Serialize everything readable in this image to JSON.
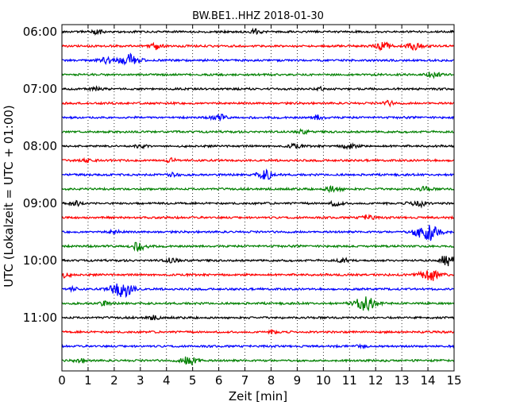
{
  "chart_data": {
    "type": "line",
    "title": "BW.BE1..HHZ 2018-01-30",
    "xlabel": "Zeit  [min]",
    "ylabel": "UTC (Lokalzeit = UTC + 01:00)",
    "xlim": [
      0,
      15
    ],
    "x_ticks": [
      "0",
      "1",
      "2",
      "3",
      "4",
      "5",
      "6",
      "7",
      "8",
      "9",
      "10",
      "11",
      "12",
      "13",
      "14",
      "15"
    ],
    "y_tick_labels": [
      "06:00",
      "07:00",
      "08:00",
      "09:00",
      "10:00",
      "11:00"
    ],
    "vertical_grid": "dotted, at every minute",
    "trace_colors": [
      "#000000",
      "#ff0000",
      "#0000ff",
      "#008000"
    ],
    "series": [
      {
        "start": "06:00",
        "events": [
          {
            "x": 1.3,
            "amp": 0.35
          },
          {
            "x": 7.4,
            "amp": 0.3
          }
        ]
      },
      {
        "start": "06:15",
        "events": [
          {
            "x": 3.6,
            "amp": 0.45
          },
          {
            "x": 12.3,
            "amp": 0.55
          },
          {
            "x": 13.5,
            "amp": 0.5
          }
        ]
      },
      {
        "start": "06:30",
        "events": [
          {
            "x": 1.7,
            "amp": 0.5
          },
          {
            "x": 2.6,
            "amp": 0.9
          }
        ]
      },
      {
        "start": "06:45",
        "events": [
          {
            "x": 14.2,
            "amp": 0.4
          }
        ]
      },
      {
        "start": "07:00",
        "events": [
          {
            "x": 1.3,
            "amp": 0.25
          },
          {
            "x": 10.0,
            "amp": 0.25
          }
        ]
      },
      {
        "start": "07:15",
        "events": [
          {
            "x": 12.5,
            "amp": 0.3
          }
        ]
      },
      {
        "start": "07:30",
        "events": [
          {
            "x": 6.0,
            "amp": 0.45
          },
          {
            "x": 9.8,
            "amp": 0.3
          }
        ]
      },
      {
        "start": "07:45",
        "events": [
          {
            "x": 9.2,
            "amp": 0.25
          }
        ]
      },
      {
        "start": "08:00",
        "events": [
          {
            "x": 3.0,
            "amp": 0.25
          },
          {
            "x": 8.9,
            "amp": 0.3
          },
          {
            "x": 11.0,
            "amp": 0.4
          }
        ]
      },
      {
        "start": "08:15",
        "events": [
          {
            "x": 4.2,
            "amp": 0.3
          },
          {
            "x": 1.0,
            "amp": 0.25
          }
        ]
      },
      {
        "start": "08:30",
        "events": [
          {
            "x": 7.8,
            "amp": 0.65
          },
          {
            "x": 4.3,
            "amp": 0.3
          }
        ]
      },
      {
        "start": "08:45",
        "events": [
          {
            "x": 10.4,
            "amp": 0.5
          },
          {
            "x": 13.9,
            "amp": 0.3
          }
        ]
      },
      {
        "start": "09:00",
        "events": [
          {
            "x": 0.5,
            "amp": 0.35
          },
          {
            "x": 10.5,
            "amp": 0.35
          },
          {
            "x": 13.6,
            "amp": 0.55
          }
        ]
      },
      {
        "start": "09:15",
        "events": [
          {
            "x": 11.7,
            "amp": 0.35
          }
        ]
      },
      {
        "start": "09:30",
        "events": [
          {
            "x": 14.0,
            "amp": 1.4
          },
          {
            "x": 2.0,
            "amp": 0.25
          }
        ]
      },
      {
        "start": "09:45",
        "events": [
          {
            "x": 2.95,
            "amp": 0.6
          }
        ]
      },
      {
        "start": "10:00",
        "events": [
          {
            "x": 4.2,
            "amp": 0.35
          },
          {
            "x": 10.8,
            "amp": 0.35
          },
          {
            "x": 14.9,
            "amp": 1.2
          }
        ]
      },
      {
        "start": "10:15",
        "events": [
          {
            "x": 14.1,
            "amp": 1.0
          },
          {
            "x": 0.05,
            "amp": 0.35
          }
        ]
      },
      {
        "start": "10:30",
        "events": [
          {
            "x": 2.3,
            "amp": 1.2
          },
          {
            "x": 0.4,
            "amp": 0.25
          }
        ]
      },
      {
        "start": "10:45",
        "events": [
          {
            "x": 11.6,
            "amp": 1.05
          },
          {
            "x": 1.6,
            "amp": 0.3
          }
        ]
      },
      {
        "start": "11:00",
        "events": [
          {
            "x": 3.5,
            "amp": 0.3
          }
        ]
      },
      {
        "start": "11:15",
        "events": [
          {
            "x": 8.1,
            "amp": 0.2
          }
        ]
      },
      {
        "start": "11:30",
        "events": [
          {
            "x": 11.5,
            "amp": 0.25
          }
        ]
      },
      {
        "start": "11:45",
        "events": [
          {
            "x": 4.9,
            "amp": 0.7
          },
          {
            "x": 0.7,
            "amp": 0.3
          }
        ]
      }
    ]
  }
}
